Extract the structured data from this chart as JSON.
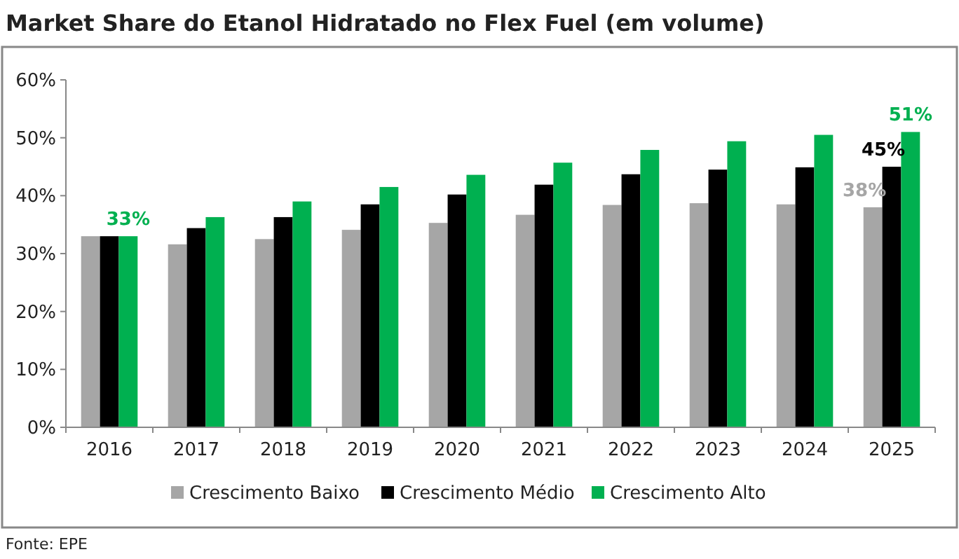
{
  "chart_data": {
    "type": "bar",
    "title": "Market Share do Etanol Hidratado no Flex Fuel (em volume)",
    "categories": [
      "2016",
      "2017",
      "2018",
      "2019",
      "2020",
      "2021",
      "2022",
      "2023",
      "2024",
      "2025"
    ],
    "series": [
      {
        "name": "Crescimento Baixo",
        "color": "#a6a6a6",
        "values": [
          33,
          31.6,
          32.5,
          34.1,
          35.3,
          36.7,
          38.4,
          38.7,
          38.5,
          38
        ],
        "value_labels": [
          null,
          null,
          null,
          null,
          null,
          null,
          null,
          null,
          null,
          "38%"
        ]
      },
      {
        "name": "Crescimento Médio",
        "color": "#000000",
        "values": [
          33,
          34.4,
          36.3,
          38.5,
          40.2,
          41.9,
          43.7,
          44.5,
          44.9,
          45
        ],
        "value_labels": [
          null,
          null,
          null,
          null,
          null,
          null,
          null,
          null,
          null,
          "45%"
        ]
      },
      {
        "name": "Crescimento Alto",
        "color": "#00b050",
        "values": [
          33,
          36.3,
          39.0,
          41.5,
          43.6,
          45.7,
          47.9,
          49.4,
          50.5,
          51
        ],
        "value_labels": [
          "33%",
          null,
          null,
          null,
          null,
          null,
          null,
          null,
          null,
          "51%"
        ]
      }
    ],
    "ylim": [
      0,
      60
    ],
    "yticks": [
      {
        "value": 0,
        "label": "0%"
      },
      {
        "value": 10,
        "label": "10%"
      },
      {
        "value": 20,
        "label": "20%"
      },
      {
        "value": 30,
        "label": "30%"
      },
      {
        "value": 40,
        "label": "40%"
      },
      {
        "value": 50,
        "label": "50%"
      },
      {
        "value": 60,
        "label": "60%"
      }
    ],
    "grid": false,
    "legend": "bottom",
    "annotations": [
      "Fonte: EPE"
    ]
  }
}
